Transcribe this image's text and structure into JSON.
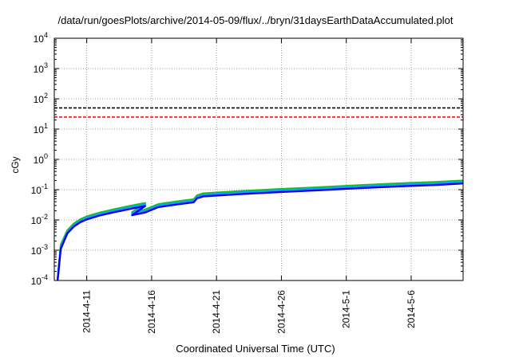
{
  "chart_data": {
    "type": "line",
    "title": "/data/run/goesPlots/archive/2014-05-09/flux/../bryn/31daysEarthDataAccumulated.plot",
    "xlabel": "Coordinated Universal Time (UTC)",
    "ylabel": "cGy",
    "x_ticks": [
      "2014-4-11",
      "2014-4-16",
      "2014-4-21",
      "2014-4-26",
      "2014-5-1",
      "2014-5-6"
    ],
    "xlim": [
      "2014-04-08T12:00",
      "2014-05-10T00:00"
    ],
    "y_scale": "log",
    "ylim": [
      0.0001,
      10000
    ],
    "y_ticks": [
      0.0001,
      0.001,
      0.01,
      0.1,
      1,
      10,
      100,
      1000,
      10000
    ],
    "grid": true,
    "reference_lines": [
      {
        "value": 50,
        "style": "dashed",
        "color": "#000000"
      },
      {
        "value": 25,
        "style": "dashed",
        "color": "#ff0000"
      }
    ],
    "series": [
      {
        "color": "#22bb22",
        "points": [
          [
            "2014-04-08T18:00",
            0.0001
          ],
          [
            "2014-04-09T00:00",
            0.0015
          ],
          [
            "2014-04-09T12:00",
            0.0045
          ],
          [
            "2014-04-10T00:00",
            0.0075
          ],
          [
            "2014-04-10T12:00",
            0.0105
          ],
          [
            "2014-04-11T00:00",
            0.013
          ],
          [
            "2014-04-12T00:00",
            0.0175
          ],
          [
            "2014-04-13T00:00",
            0.022
          ],
          [
            "2014-04-14T00:00",
            0.027
          ],
          [
            "2014-04-15T00:00",
            0.033
          ],
          [
            "2014-04-15T12:00",
            0.036
          ],
          [
            "2014-04-14T12:00",
            0.018
          ],
          [
            "2014-04-15T12:00",
            0.022
          ],
          [
            "2014-04-16T12:00",
            0.033
          ],
          [
            "2014-04-18T00:00",
            0.041
          ],
          [
            "2014-04-19T06:00",
            0.048
          ],
          [
            "2014-04-19T12:00",
            0.065
          ],
          [
            "2014-04-20T00:00",
            0.075
          ],
          [
            "2014-04-23T00:00",
            0.09
          ],
          [
            "2014-04-26T00:00",
            0.105
          ],
          [
            "2014-04-29T00:00",
            0.12
          ],
          [
            "2014-05-02T00:00",
            0.14
          ],
          [
            "2014-05-05T00:00",
            0.16
          ],
          [
            "2014-05-08T00:00",
            0.18
          ],
          [
            "2014-05-10T00:00",
            0.2
          ]
        ]
      },
      {
        "color": "#00aaff",
        "points": [
          [
            "2014-04-08T18:00",
            0.0001
          ],
          [
            "2014-04-09T00:00",
            0.0013
          ],
          [
            "2014-04-09T12:00",
            0.004
          ],
          [
            "2014-04-10T00:00",
            0.0067
          ],
          [
            "2014-04-10T12:00",
            0.0093
          ],
          [
            "2014-04-11T00:00",
            0.0117
          ],
          [
            "2014-04-12T00:00",
            0.0157
          ],
          [
            "2014-04-13T00:00",
            0.0198
          ],
          [
            "2014-04-14T00:00",
            0.0243
          ],
          [
            "2014-04-15T00:00",
            0.0297
          ],
          [
            "2014-04-15T12:00",
            0.0324
          ],
          [
            "2014-04-14T12:00",
            0.0162
          ],
          [
            "2014-04-15T12:00",
            0.0198
          ],
          [
            "2014-04-16T12:00",
            0.0297
          ],
          [
            "2014-04-18T00:00",
            0.0369
          ],
          [
            "2014-04-19T06:00",
            0.0432
          ],
          [
            "2014-04-19T12:00",
            0.0585
          ],
          [
            "2014-04-20T00:00",
            0.0675
          ],
          [
            "2014-04-23T00:00",
            0.081
          ],
          [
            "2014-04-26T00:00",
            0.0945
          ],
          [
            "2014-04-29T00:00",
            0.108
          ],
          [
            "2014-05-02T00:00",
            0.126
          ],
          [
            "2014-05-05T00:00",
            0.144
          ],
          [
            "2014-05-08T00:00",
            0.162
          ],
          [
            "2014-05-10T00:00",
            0.18
          ]
        ]
      },
      {
        "color": "#0000ee",
        "points": [
          [
            "2014-04-08T18:00",
            0.0001
          ],
          [
            "2014-04-09T00:00",
            0.0011
          ],
          [
            "2014-04-09T12:00",
            0.0036
          ],
          [
            "2014-04-10T00:00",
            0.006
          ],
          [
            "2014-04-10T12:00",
            0.0084
          ],
          [
            "2014-04-11T00:00",
            0.0104
          ],
          [
            "2014-04-12T00:00",
            0.014
          ],
          [
            "2014-04-13T00:00",
            0.0176
          ],
          [
            "2014-04-14T00:00",
            0.0216
          ],
          [
            "2014-04-15T00:00",
            0.0264
          ],
          [
            "2014-04-15T12:00",
            0.0288
          ],
          [
            "2014-04-14T12:00",
            0.0144
          ],
          [
            "2014-04-15T12:00",
            0.0176
          ],
          [
            "2014-04-16T12:00",
            0.0264
          ],
          [
            "2014-04-18T00:00",
            0.0328
          ],
          [
            "2014-04-19T06:00",
            0.0384
          ],
          [
            "2014-04-19T12:00",
            0.052
          ],
          [
            "2014-04-20T00:00",
            0.06
          ],
          [
            "2014-04-23T00:00",
            0.072
          ],
          [
            "2014-04-26T00:00",
            0.084
          ],
          [
            "2014-04-29T00:00",
            0.096
          ],
          [
            "2014-05-02T00:00",
            0.112
          ],
          [
            "2014-05-05T00:00",
            0.128
          ],
          [
            "2014-05-08T00:00",
            0.144
          ],
          [
            "2014-05-10T00:00",
            0.16
          ]
        ]
      }
    ]
  }
}
